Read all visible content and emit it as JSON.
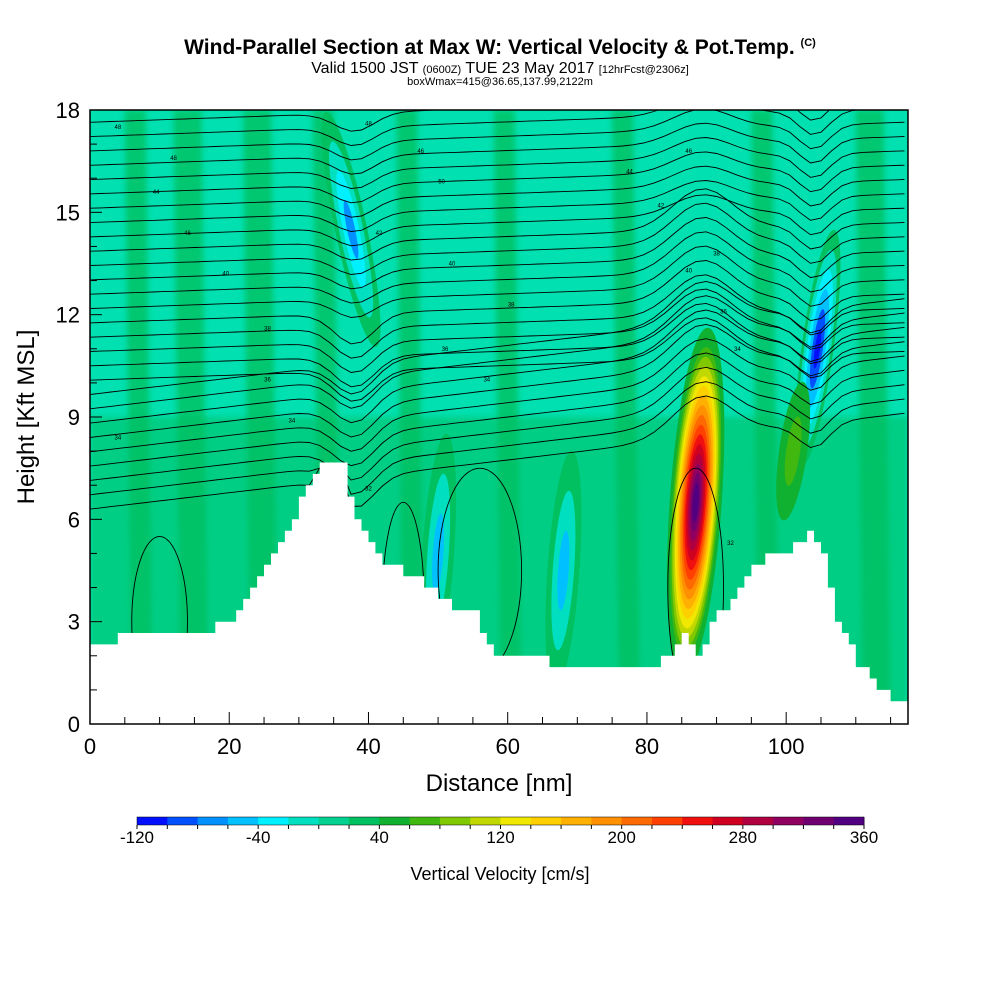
{
  "header": {
    "title": "Wind-Parallel Section at Max W: Vertical Velocity & Pot.Temp.",
    "title_mark": "(C)",
    "subtitle_main": "Valid 1500 JST",
    "subtitle_utc": "(0600Z)",
    "subtitle_date": "TUE 23 May 2017",
    "subtitle_fcst": "[12hrFcst@2306z]",
    "subtitle2": "boxWmax=415@36.65,137.99,2122m"
  },
  "chart_data": {
    "type": "heatmap",
    "xlabel": "Distance [nm]",
    "ylabel": "Height [Kft MSL]",
    "xlim": [
      0,
      117.5
    ],
    "ylim": [
      0,
      18
    ],
    "x_ticks": [
      0,
      20,
      40,
      60,
      80,
      100
    ],
    "y_ticks": [
      0,
      3,
      6,
      9,
      12,
      15,
      18
    ],
    "colorbar": {
      "label": "Vertical Velocity [cm/s]",
      "min": -120,
      "max": 360,
      "step": 20,
      "tick_labels": [
        "-120",
        "-40",
        "40",
        "120",
        "200",
        "280",
        "360"
      ],
      "colors": [
        "#0010ff",
        "#0050ff",
        "#0090ff",
        "#00c0ff",
        "#00f0ff",
        "#00e0c0",
        "#00d090",
        "#00c060",
        "#10b030",
        "#40b810",
        "#80c800",
        "#c0d800",
        "#f0e800",
        "#ffd000",
        "#ffb000",
        "#ff9000",
        "#ff6a00",
        "#ff4000",
        "#f01010",
        "#d00020",
        "#b00040",
        "#900060",
        "#700070",
        "#500080"
      ]
    },
    "terrain_kft": [
      [
        0,
        2.2
      ],
      [
        5,
        2.6
      ],
      [
        15,
        2.6
      ],
      [
        20,
        3.0
      ],
      [
        25,
        4.5
      ],
      [
        30,
        6.5
      ],
      [
        33,
        7.5
      ],
      [
        36,
        7.5
      ],
      [
        38,
        6.0
      ],
      [
        40,
        5.2
      ],
      [
        43,
        4.6
      ],
      [
        47,
        4.3
      ],
      [
        50,
        3.6
      ],
      [
        55,
        3.3
      ],
      [
        57,
        2.2
      ],
      [
        60,
        1.9
      ],
      [
        75,
        1.7
      ],
      [
        80,
        1.7
      ],
      [
        83,
        1.9
      ],
      [
        85,
        2.6
      ],
      [
        87,
        2.1
      ],
      [
        90,
        3.2
      ],
      [
        93,
        4.0
      ],
      [
        97,
        5.0
      ],
      [
        100,
        5.0
      ],
      [
        103,
        5.6
      ],
      [
        105,
        5.0
      ],
      [
        107,
        3.0
      ],
      [
        110,
        1.8
      ],
      [
        113,
        1.0
      ],
      [
        116,
        0.5
      ],
      [
        117.5,
        0.5
      ]
    ],
    "vertical_velocity_features": [
      {
        "x": 37.5,
        "z": 14.5,
        "w": -70,
        "desc": "downdraft"
      },
      {
        "x": 50,
        "z": 5.0,
        "w": -50,
        "desc": "downdraft"
      },
      {
        "x": 68,
        "z": 4.5,
        "w": -50,
        "desc": "downdraft"
      },
      {
        "x": 87,
        "z": 6.5,
        "w": 360,
        "desc": "updraft"
      },
      {
        "x": 104.5,
        "z": 11.0,
        "w": -110,
        "desc": "downdraft"
      },
      {
        "x": 101,
        "z": 8.0,
        "w": 70,
        "desc": "updraft"
      }
    ],
    "isentrope_labels": [
      {
        "x": 4,
        "z": 17.5,
        "text": "48"
      },
      {
        "x": 12,
        "z": 16.6,
        "text": "48"
      },
      {
        "x": 9.5,
        "z": 15.6,
        "text": "44"
      },
      {
        "x": 14,
        "z": 14.4,
        "text": "46"
      },
      {
        "x": 19.5,
        "z": 13.2,
        "text": "40"
      },
      {
        "x": 25.5,
        "z": 11.6,
        "text": "38"
      },
      {
        "x": 25.5,
        "z": 10.1,
        "text": "36"
      },
      {
        "x": 29,
        "z": 8.9,
        "text": "34"
      },
      {
        "x": 4,
        "z": 8.4,
        "text": "34"
      },
      {
        "x": 40,
        "z": 17.6,
        "text": "48"
      },
      {
        "x": 47.5,
        "z": 16.8,
        "text": "46"
      },
      {
        "x": 50.5,
        "z": 15.9,
        "text": "50"
      },
      {
        "x": 41.5,
        "z": 14.4,
        "text": "42"
      },
      {
        "x": 52,
        "z": 13.5,
        "text": "40"
      },
      {
        "x": 60.5,
        "z": 12.3,
        "text": "38"
      },
      {
        "x": 51,
        "z": 11.0,
        "text": "36"
      },
      {
        "x": 57,
        "z": 10.1,
        "text": "34"
      },
      {
        "x": 40,
        "z": 6.9,
        "text": "32"
      },
      {
        "x": 86,
        "z": 16.8,
        "text": "46"
      },
      {
        "x": 77.5,
        "z": 16.2,
        "text": "44"
      },
      {
        "x": 82,
        "z": 15.2,
        "text": "42"
      },
      {
        "x": 86,
        "z": 13.3,
        "text": "40"
      },
      {
        "x": 90,
        "z": 13.8,
        "text": "38"
      },
      {
        "x": 91,
        "z": 12.1,
        "text": "36"
      },
      {
        "x": 93,
        "z": 11.0,
        "text": "34"
      },
      {
        "x": 92,
        "z": 5.3,
        "text": "32"
      }
    ]
  }
}
